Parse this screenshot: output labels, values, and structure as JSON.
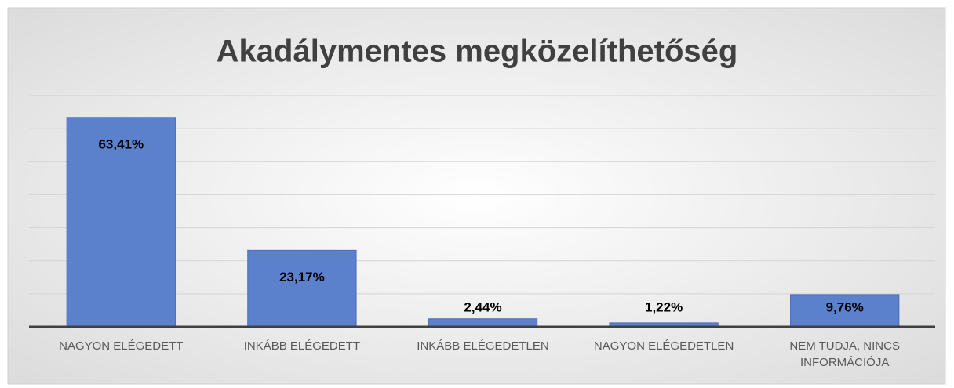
{
  "chart_data": {
    "type": "bar",
    "title": "Akadálymentes megközelíthetőség",
    "categories": [
      "NAGYON ELÉGEDETT",
      "INKÁBB ELÉGEDETT",
      "INKÁBB ELÉGEDETLEN",
      "NAGYON ELÉGEDETLEN",
      "NEM TUDJA, NINCS INFORMÁCIÓJA"
    ],
    "values": [
      63.41,
      23.17,
      2.44,
      1.22,
      9.76
    ],
    "value_labels": [
      "63,41%",
      "23,17%",
      "2,44%",
      "1,22%",
      "9,76%"
    ],
    "color": "#5b80cc",
    "ylim": [
      0,
      70
    ],
    "yticks": [
      0,
      10,
      20,
      30,
      40,
      50,
      60,
      70
    ],
    "grid": true
  }
}
